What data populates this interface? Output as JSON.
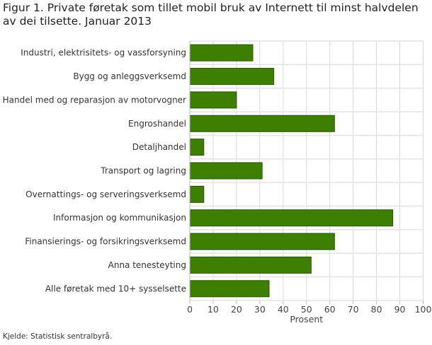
{
  "chart_data": {
    "type": "bar",
    "orientation": "horizontal",
    "title": "Figur 1. Private føretak som tillet mobil bruk av Internett til minst halvdelen av dei tilsette. Januar 2013",
    "categories": [
      "Industri, elektrisitets- og vassforsyning",
      "Bygg og anleggsverksemd",
      "Handel med og reparasjon av motorvogner",
      "Engroshandel",
      "Detaljhandel",
      "Transport og lagring",
      "Overnattings- og serveringsverksemd",
      "Informasjon og kommunikasjon",
      "Finansierings- og forsikringsverksemd",
      "Anna tenesteyting",
      "Alle føretak med 10+ sysselsette"
    ],
    "values": [
      27,
      36,
      20,
      62,
      6,
      31,
      6,
      87,
      62,
      52,
      34
    ],
    "xlabel": "Prosent",
    "ylabel": "",
    "xlim": [
      0,
      100
    ],
    "xticks": [
      "0",
      "10",
      "20",
      "30",
      "40",
      "50",
      "60",
      "70",
      "80",
      "90",
      "100"
    ],
    "grid": true,
    "bar_color": "#3d7f00",
    "source": "Kjelde: Statistisk sentralbyrå."
  }
}
